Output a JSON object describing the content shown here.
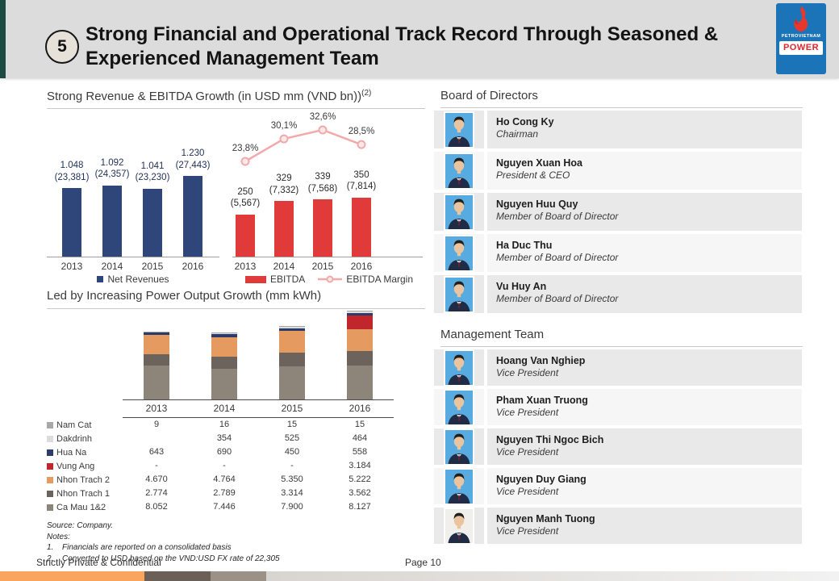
{
  "header": {
    "badge": "5",
    "title_line1": "Strong Financial and Operational Track Record Through Seasoned &",
    "title_line2": "Experienced Management Team"
  },
  "logo": {
    "brand": "PETROVIETNAM",
    "power": "POWER"
  },
  "left": {
    "section1_title": "Strong Revenue & EBITDA Growth (in USD mm (VND bn))",
    "section1_sup": "(2)",
    "section2_title": "Led by Increasing Power Output Growth (mm kWh)",
    "source": "Source: Company.",
    "notes_label": "Notes:",
    "notes": [
      {
        "num": "1.",
        "text": "Financials are reported on a consolidated basis"
      },
      {
        "num": "2.",
        "text": "Converted to USD based on the VND:USD FX rate of 22,305"
      }
    ]
  },
  "chart_data": [
    {
      "type": "bar",
      "title": "Net Revenues in USD mm (VND bn)",
      "categories": [
        "2013",
        "2014",
        "2015",
        "2016"
      ],
      "values": [
        1048,
        1092,
        1041,
        1230
      ],
      "labels_usd": [
        "1.048",
        "1.092",
        "1.041",
        "1.230"
      ],
      "labels_vnd": [
        "(23,381)",
        "(24,357)",
        "(23,230)",
        "(27,443)"
      ],
      "legend": "Net Revenues",
      "bar_color": "#2e4679",
      "ylim": [
        0,
        1400
      ]
    },
    {
      "type": "bar+line",
      "title": "EBITDA in USD mm (VND bn) and EBITDA Margin",
      "categories": [
        "2013",
        "2014",
        "2015",
        "2016"
      ],
      "series": [
        {
          "name": "EBITDA",
          "type": "bar",
          "values": [
            250,
            329,
            339,
            350
          ],
          "labels_usd": [
            "250",
            "329",
            "339",
            "350"
          ],
          "labels_vnd": [
            "(5,567)",
            "(7,332)",
            "(7,568)",
            "(7,814)"
          ],
          "color": "#e03a3a"
        },
        {
          "name": "EBITDA Margin",
          "type": "line",
          "values_pct": [
            23.8,
            30.1,
            32.6,
            28.5
          ],
          "labels": [
            "23,8%",
            "30,1%",
            "32,6%",
            "28,5%"
          ],
          "color": "#f2a9a9"
        }
      ]
    },
    {
      "type": "stacked-bar+table",
      "title": "Power Output Growth (mm kWh)",
      "categories": [
        "2013",
        "2014",
        "2015",
        "2016"
      ],
      "series": [
        {
          "name": "Nam Cat",
          "color": "#a8a8a8",
          "values": [
            9,
            16,
            15,
            15
          ],
          "labels": [
            "9",
            "16",
            "15",
            "15"
          ]
        },
        {
          "name": "Dakdrinh",
          "color": "#dcdcdc",
          "values": [
            0,
            354,
            525,
            464
          ],
          "labels": [
            "",
            "354",
            "525",
            "464"
          ]
        },
        {
          "name": "Hua Na",
          "color": "#2c3c6a",
          "values": [
            643,
            690,
            450,
            558
          ],
          "labels": [
            "643",
            "690",
            "450",
            "558"
          ]
        },
        {
          "name": "Vung Ang",
          "color": "#c1262d",
          "values": [
            0,
            0,
            0,
            3184
          ],
          "labels": [
            "-",
            "-",
            "-",
            "3.184"
          ]
        },
        {
          "name": "Nhon Trach 2",
          "color": "#e59a5f",
          "values": [
            4670,
            4764,
            5350,
            5222
          ],
          "labels": [
            "4.670",
            "4.764",
            "5.350",
            "5.222"
          ]
        },
        {
          "name": "Nhon Trach 1",
          "color": "#6b635c",
          "values": [
            2774,
            2789,
            3314,
            3562
          ],
          "labels": [
            "2.774",
            "2.789",
            "3.314",
            "3.562"
          ]
        },
        {
          "name": "Ca Mau 1&2",
          "color": "#8d857a",
          "values": [
            8052,
            7446,
            7900,
            8127
          ],
          "labels": [
            "8.052",
            "7.446",
            "7.900",
            "8.127"
          ]
        }
      ]
    }
  ],
  "right": {
    "board_title": "Board of Directors",
    "board": [
      {
        "name": "Ho Cong Ky",
        "title": "Chairman",
        "photo_bg": "#58abe0"
      },
      {
        "name": "Nguyen Xuan Hoa",
        "title": "President & CEO",
        "photo_bg": "#58abe0"
      },
      {
        "name": "Nguyen Huu Quy",
        "title": "Member of Board of Director",
        "photo_bg": "#58abe0"
      },
      {
        "name": "Ha Duc Thu",
        "title": "Member of Board of Director",
        "photo_bg": "#58abe0"
      },
      {
        "name": "Vu Huy An",
        "title": "Member of Board of Director",
        "photo_bg": "#58abe0"
      }
    ],
    "mgmt_title": "Management Team",
    "management": [
      {
        "name": "Hoang Van Nghiep",
        "title": "Vice President",
        "photo_bg": "#58abe0"
      },
      {
        "name": "Pham Xuan Truong",
        "title": "Vice President",
        "photo_bg": "#58abe0"
      },
      {
        "name": "Nguyen Thi Ngoc Bich",
        "title": "Vice President",
        "photo_bg": "#58abe0"
      },
      {
        "name": "Nguyen Duy Giang",
        "title": "Vice President",
        "photo_bg": "#58abe0"
      },
      {
        "name": "Nguyen Manh Tuong",
        "title": "Vice President",
        "photo_bg": "#f0efec"
      }
    ]
  },
  "footer": {
    "left": "Strictly Private & Confidential",
    "page": "Page 10"
  },
  "colors": {
    "header_bg": "#dcdcdc",
    "header_accent": "#1d4b43",
    "logo_blue": "#1b74b8",
    "logo_red": "#e0262c",
    "strip_orange": "#f9a55e",
    "strip_dark": "#6b6058",
    "strip_mid": "#9c9187",
    "strip_light_from": "#d8d4cf",
    "strip_light_to": "#f2f2f2"
  }
}
